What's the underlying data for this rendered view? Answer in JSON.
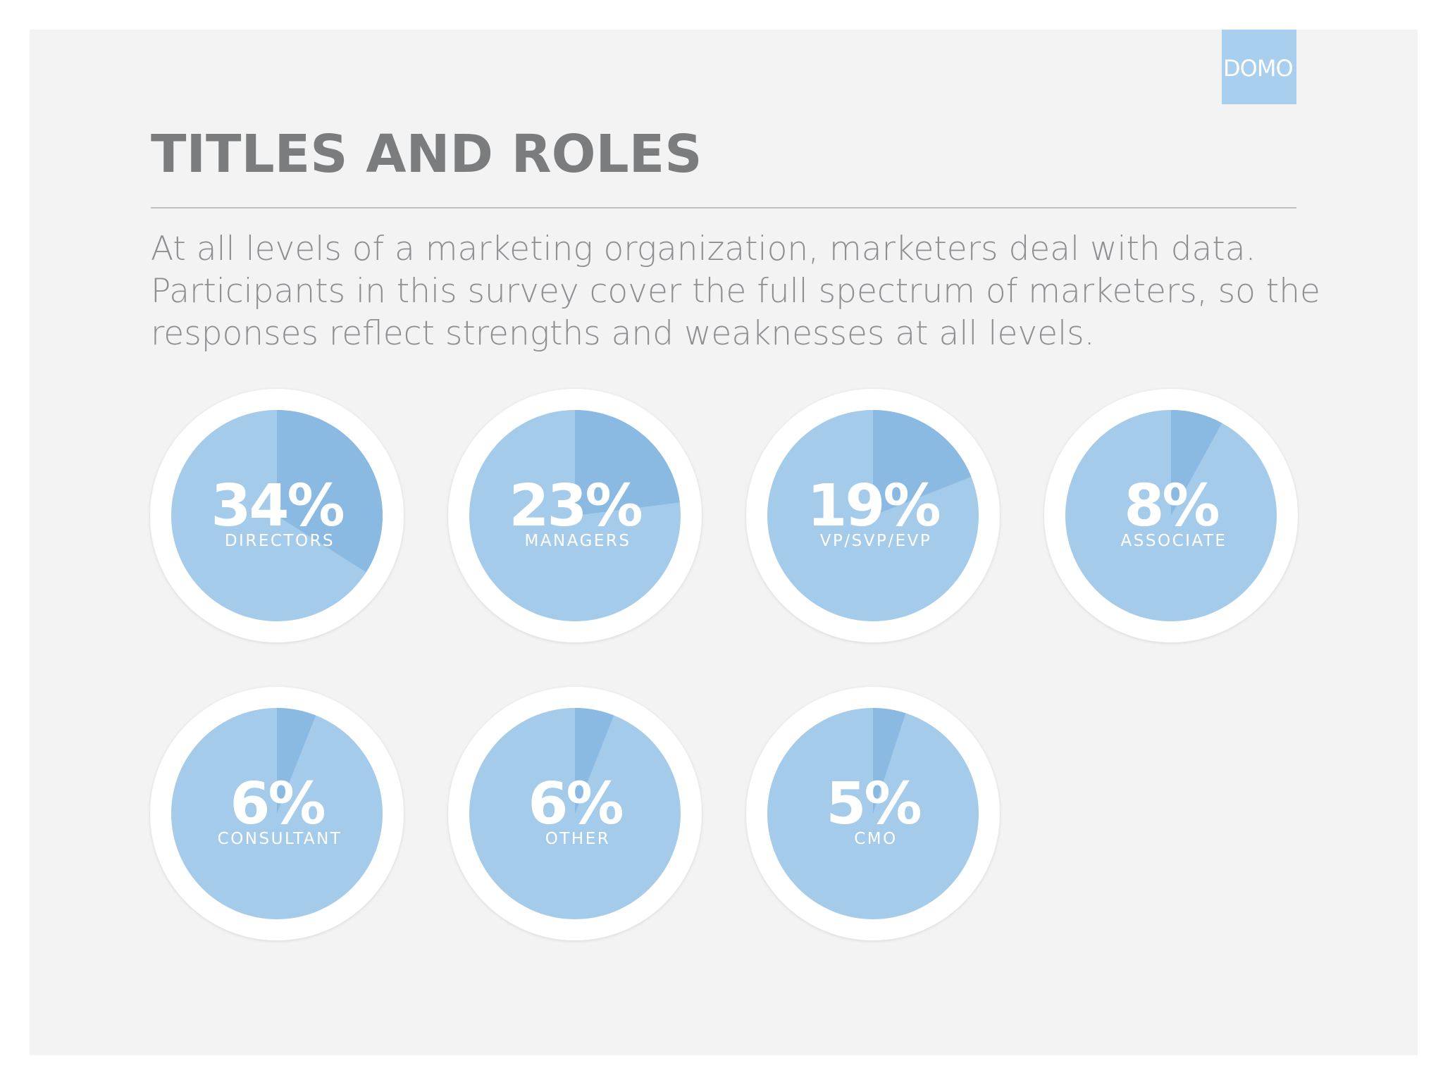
{
  "logo": {
    "text": "DOMO",
    "color": "#a8cfee"
  },
  "header": {
    "title": "TITLES AND ROLES",
    "subtitle_lines": [
      "At all levels of a marketing organization, marketers deal with data.",
      "Participants in this survey cover the full spectrum of marketers, so the",
      "responses reflect strengths and weaknesses at all levels."
    ]
  },
  "colors": {
    "background": "#f3f3f4",
    "ring": "#ffffff",
    "pie_base": "#a5cbea",
    "pie_slice": "#8ab9e2",
    "title": "#7b7c7e",
    "text": "#8e8f92"
  },
  "chart_data": {
    "type": "pie",
    "categories": [
      "DIRECTORS",
      "MANAGERS",
      "VP/SVP/EVP",
      "ASSOCIATE",
      "CONSULTANT",
      "OTHER",
      "CMO"
    ],
    "values": [
      34,
      23,
      19,
      8,
      6,
      6,
      5
    ],
    "value_labels": [
      "34%",
      "23%",
      "19%",
      "8%",
      "6%",
      "6%",
      "5%"
    ],
    "unit": "%"
  }
}
